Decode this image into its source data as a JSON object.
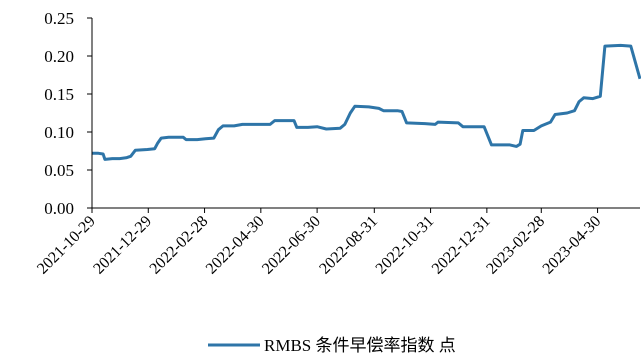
{
  "chart_data": {
    "type": "line",
    "title": "",
    "xlabel": "",
    "ylabel": "",
    "ylim": [
      0,
      0.25
    ],
    "yticks": [
      "0.00",
      "0.05",
      "0.10",
      "0.15",
      "0.20",
      "0.25"
    ],
    "xlim": [
      "2021-10-29",
      "2023-06-15"
    ],
    "xticks": [
      "2021-10-29",
      "2021-12-29",
      "2022-02-28",
      "2022-04-30",
      "2022-06-30",
      "2022-08-31",
      "2022-10-31",
      "2022-12-31",
      "2023-02-28",
      "2023-04-30"
    ],
    "grid": false,
    "legend_position": "bottom",
    "colors": {
      "series": "#2e75a8"
    },
    "series": [
      {
        "name": "RMBS 条件早偿率指数 点",
        "points": [
          [
            "2021-10-29",
            0.072
          ],
          [
            "2021-11-05",
            0.072
          ],
          [
            "2021-11-10",
            0.071
          ],
          [
            "2021-11-12",
            0.064
          ],
          [
            "2021-11-20",
            0.065
          ],
          [
            "2021-11-28",
            0.065
          ],
          [
            "2021-12-05",
            0.066
          ],
          [
            "2021-12-10",
            0.068
          ],
          [
            "2021-12-15",
            0.076
          ],
          [
            "2021-12-28",
            0.077
          ],
          [
            "2022-01-05",
            0.078
          ],
          [
            "2022-01-08",
            0.085
          ],
          [
            "2022-01-12",
            0.092
          ],
          [
            "2022-01-20",
            0.093
          ],
          [
            "2022-02-05",
            0.093
          ],
          [
            "2022-02-08",
            0.09
          ],
          [
            "2022-02-20",
            0.09
          ],
          [
            "2022-03-01",
            0.091
          ],
          [
            "2022-03-10",
            0.092
          ],
          [
            "2022-03-15",
            0.103
          ],
          [
            "2022-03-20",
            0.108
          ],
          [
            "2022-04-01",
            0.108
          ],
          [
            "2022-04-10",
            0.11
          ],
          [
            "2022-04-30",
            0.11
          ],
          [
            "2022-05-10",
            0.11
          ],
          [
            "2022-05-15",
            0.115
          ],
          [
            "2022-06-05",
            0.115
          ],
          [
            "2022-06-08",
            0.106
          ],
          [
            "2022-06-20",
            0.106
          ],
          [
            "2022-06-30",
            0.107
          ],
          [
            "2022-07-10",
            0.104
          ],
          [
            "2022-07-25",
            0.105
          ],
          [
            "2022-07-30",
            0.11
          ],
          [
            "2022-08-05",
            0.125
          ],
          [
            "2022-08-10",
            0.134
          ],
          [
            "2022-08-25",
            0.133
          ],
          [
            "2022-09-05",
            0.131
          ],
          [
            "2022-09-10",
            0.128
          ],
          [
            "2022-09-25",
            0.128
          ],
          [
            "2022-09-30",
            0.127
          ],
          [
            "2022-10-05",
            0.112
          ],
          [
            "2022-10-25",
            0.111
          ],
          [
            "2022-11-05",
            0.11
          ],
          [
            "2022-11-08",
            0.113
          ],
          [
            "2022-11-30",
            0.112
          ],
          [
            "2022-12-05",
            0.107
          ],
          [
            "2022-12-28",
            0.107
          ],
          [
            "2023-01-05",
            0.083
          ],
          [
            "2023-01-25",
            0.083
          ],
          [
            "2023-02-01",
            0.081
          ],
          [
            "2023-02-05",
            0.084
          ],
          [
            "2023-02-08",
            0.102
          ],
          [
            "2023-02-20",
            0.102
          ],
          [
            "2023-02-28",
            0.108
          ],
          [
            "2023-03-10",
            0.113
          ],
          [
            "2023-03-15",
            0.123
          ],
          [
            "2023-03-28",
            0.125
          ],
          [
            "2023-04-05",
            0.128
          ],
          [
            "2023-04-10",
            0.14
          ],
          [
            "2023-04-15",
            0.145
          ],
          [
            "2023-04-25",
            0.144
          ],
          [
            "2023-05-03",
            0.147
          ],
          [
            "2023-05-08",
            0.213
          ],
          [
            "2023-05-25",
            0.214
          ],
          [
            "2023-06-05",
            0.213
          ],
          [
            "2023-06-15",
            0.17
          ]
        ]
      }
    ]
  }
}
